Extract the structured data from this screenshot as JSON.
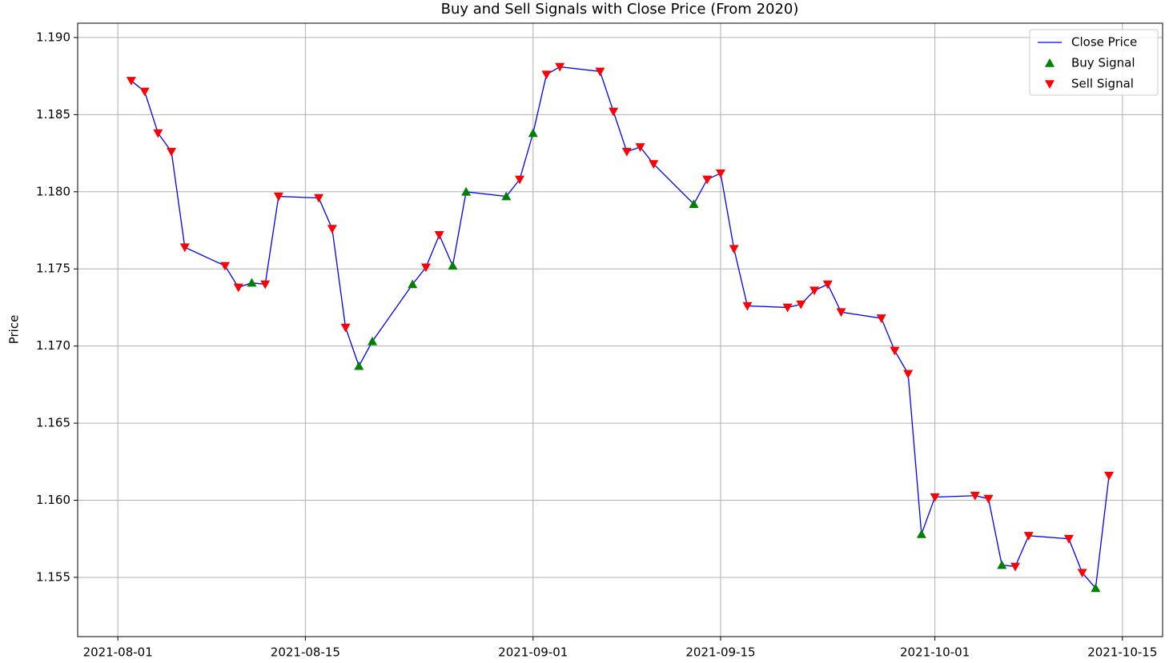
{
  "chart_data": {
    "type": "line",
    "title": "Buy and Sell Signals with Close Price (From 2020)",
    "y_label": "Price",
    "grid": true,
    "legend": "upper right",
    "xlim": [
      "2021-07-29",
      "2021-10-18"
    ],
    "xticks": [
      "2021-08-01",
      "2021-08-15",
      "2021-09-01",
      "2021-09-15",
      "2021-10-01",
      "2021-10-15"
    ],
    "ylim": [
      1.15116,
      1.19093
    ],
    "yticks": [
      1.155,
      {
        "value": 1.16,
        "label": "1.160"
      },
      1.165,
      {
        "value": 1.17,
        "label": "1.170"
      },
      1.175,
      {
        "value": 1.18,
        "label": "1.180"
      },
      1.185,
      {
        "value": 1.19,
        "label": "1.190"
      }
    ],
    "x": [
      "2021-08-02",
      "2021-08-03",
      "2021-08-04",
      "2021-08-05",
      "2021-08-06",
      "2021-08-09",
      "2021-08-10",
      "2021-08-11",
      "2021-08-12",
      "2021-08-13",
      "2021-08-16",
      "2021-08-17",
      "2021-08-18",
      "2021-08-19",
      "2021-08-20",
      "2021-08-23",
      "2021-08-24",
      "2021-08-25",
      "2021-08-26",
      "2021-08-27",
      "2021-08-30",
      "2021-08-31",
      "2021-09-01",
      "2021-09-02",
      "2021-09-03",
      "2021-09-06",
      "2021-09-07",
      "2021-09-08",
      "2021-09-09",
      "2021-09-10",
      "2021-09-13",
      "2021-09-14",
      "2021-09-15",
      "2021-09-16",
      "2021-09-17",
      "2021-09-20",
      "2021-09-21",
      "2021-09-22",
      "2021-09-23",
      "2021-09-24",
      "2021-09-27",
      "2021-09-28",
      "2021-09-29",
      "2021-09-30",
      "2021-10-01",
      "2021-10-04",
      "2021-10-05",
      "2021-10-06",
      "2021-10-07",
      "2021-10-08",
      "2021-10-11",
      "2021-10-12",
      "2021-10-13",
      "2021-10-14"
    ],
    "series": [
      {
        "name": "Close Price",
        "color": "#0000ff",
        "marker": "none",
        "values": [
          1.1872,
          1.1865,
          1.1838,
          1.1826,
          1.1764,
          1.1752,
          1.1738,
          1.1741,
          1.174,
          1.1797,
          1.1796,
          1.1776,
          1.1712,
          1.1687,
          1.1703,
          1.174,
          1.1751,
          1.1772,
          1.1752,
          1.18,
          1.1797,
          1.1808,
          1.1838,
          1.1876,
          1.1881,
          1.1878,
          1.1852,
          1.1826,
          1.1829,
          1.1818,
          1.1792,
          1.1808,
          1.1812,
          1.1763,
          1.1726,
          1.1725,
          1.1727,
          1.1736,
          1.174,
          1.1722,
          1.1718,
          1.1697,
          1.1682,
          1.1578,
          1.1602,
          1.1603,
          1.1601,
          1.1558,
          1.1557,
          1.1577,
          1.1575,
          1.1553,
          1.1543,
          1.1616
        ]
      },
      {
        "name": "Buy Signal",
        "color": "#008000",
        "marker": "triangle-up",
        "values": [
          null,
          null,
          null,
          null,
          null,
          null,
          null,
          1.1741,
          null,
          null,
          null,
          null,
          null,
          1.1687,
          1.1703,
          1.174,
          null,
          null,
          1.1752,
          1.18,
          1.1797,
          null,
          1.1838,
          null,
          null,
          null,
          null,
          null,
          null,
          null,
          1.1792,
          null,
          null,
          null,
          null,
          null,
          null,
          null,
          null,
          null,
          null,
          null,
          null,
          1.1578,
          null,
          null,
          null,
          1.1558,
          null,
          null,
          null,
          null,
          1.1543,
          null
        ]
      },
      {
        "name": "Sell Signal",
        "color": "#ff0000",
        "marker": "triangle-down",
        "values": [
          1.1872,
          1.1865,
          1.1838,
          1.1826,
          1.1764,
          1.1752,
          1.1738,
          null,
          1.174,
          1.1797,
          1.1796,
          1.1776,
          1.1712,
          null,
          null,
          null,
          1.1751,
          1.1772,
          null,
          null,
          null,
          1.1808,
          null,
          1.1876,
          1.1881,
          1.1878,
          1.1852,
          1.1826,
          1.1829,
          1.1818,
          null,
          1.1808,
          1.1812,
          1.1763,
          1.1726,
          1.1725,
          1.1727,
          1.1736,
          1.174,
          1.1722,
          1.1718,
          1.1697,
          1.1682,
          null,
          1.1602,
          1.1603,
          1.1601,
          null,
          1.1557,
          1.1577,
          1.1575,
          1.1553,
          null,
          1.1616
        ]
      }
    ]
  }
}
